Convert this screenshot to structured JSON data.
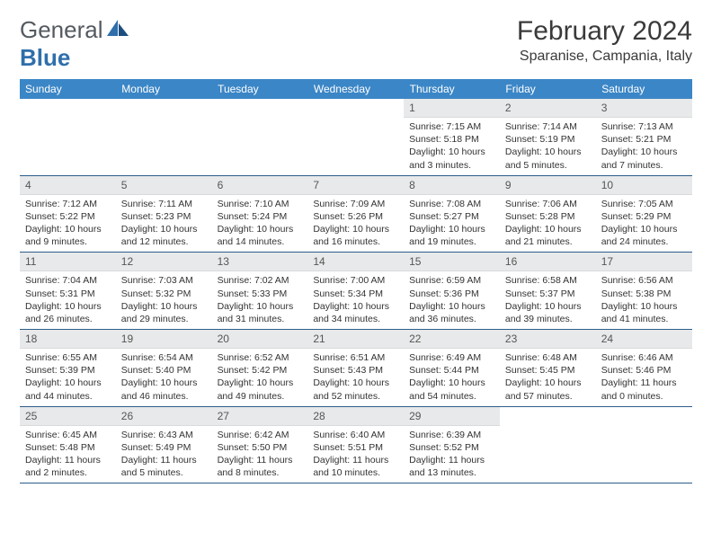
{
  "brand": {
    "general": "General",
    "blue": "Blue"
  },
  "title": "February 2024",
  "location": "Sparanise, Campania, Italy",
  "colors": {
    "header_bg": "#3b86c6",
    "header_text": "#ffffff",
    "daynum_bg": "#e8e9ea",
    "rule": "#2c5d8a",
    "logo_blue": "#2f6fab",
    "logo_gray": "#555a60"
  },
  "weekdays": [
    "Sunday",
    "Monday",
    "Tuesday",
    "Wednesday",
    "Thursday",
    "Friday",
    "Saturday"
  ],
  "weeks": [
    [
      null,
      null,
      null,
      null,
      {
        "n": "1",
        "sr": "Sunrise: 7:15 AM",
        "ss": "Sunset: 5:18 PM",
        "dl": "Daylight: 10 hours and 3 minutes."
      },
      {
        "n": "2",
        "sr": "Sunrise: 7:14 AM",
        "ss": "Sunset: 5:19 PM",
        "dl": "Daylight: 10 hours and 5 minutes."
      },
      {
        "n": "3",
        "sr": "Sunrise: 7:13 AM",
        "ss": "Sunset: 5:21 PM",
        "dl": "Daylight: 10 hours and 7 minutes."
      }
    ],
    [
      {
        "n": "4",
        "sr": "Sunrise: 7:12 AM",
        "ss": "Sunset: 5:22 PM",
        "dl": "Daylight: 10 hours and 9 minutes."
      },
      {
        "n": "5",
        "sr": "Sunrise: 7:11 AM",
        "ss": "Sunset: 5:23 PM",
        "dl": "Daylight: 10 hours and 12 minutes."
      },
      {
        "n": "6",
        "sr": "Sunrise: 7:10 AM",
        "ss": "Sunset: 5:24 PM",
        "dl": "Daylight: 10 hours and 14 minutes."
      },
      {
        "n": "7",
        "sr": "Sunrise: 7:09 AM",
        "ss": "Sunset: 5:26 PM",
        "dl": "Daylight: 10 hours and 16 minutes."
      },
      {
        "n": "8",
        "sr": "Sunrise: 7:08 AM",
        "ss": "Sunset: 5:27 PM",
        "dl": "Daylight: 10 hours and 19 minutes."
      },
      {
        "n": "9",
        "sr": "Sunrise: 7:06 AM",
        "ss": "Sunset: 5:28 PM",
        "dl": "Daylight: 10 hours and 21 minutes."
      },
      {
        "n": "10",
        "sr": "Sunrise: 7:05 AM",
        "ss": "Sunset: 5:29 PM",
        "dl": "Daylight: 10 hours and 24 minutes."
      }
    ],
    [
      {
        "n": "11",
        "sr": "Sunrise: 7:04 AM",
        "ss": "Sunset: 5:31 PM",
        "dl": "Daylight: 10 hours and 26 minutes."
      },
      {
        "n": "12",
        "sr": "Sunrise: 7:03 AM",
        "ss": "Sunset: 5:32 PM",
        "dl": "Daylight: 10 hours and 29 minutes."
      },
      {
        "n": "13",
        "sr": "Sunrise: 7:02 AM",
        "ss": "Sunset: 5:33 PM",
        "dl": "Daylight: 10 hours and 31 minutes."
      },
      {
        "n": "14",
        "sr": "Sunrise: 7:00 AM",
        "ss": "Sunset: 5:34 PM",
        "dl": "Daylight: 10 hours and 34 minutes."
      },
      {
        "n": "15",
        "sr": "Sunrise: 6:59 AM",
        "ss": "Sunset: 5:36 PM",
        "dl": "Daylight: 10 hours and 36 minutes."
      },
      {
        "n": "16",
        "sr": "Sunrise: 6:58 AM",
        "ss": "Sunset: 5:37 PM",
        "dl": "Daylight: 10 hours and 39 minutes."
      },
      {
        "n": "17",
        "sr": "Sunrise: 6:56 AM",
        "ss": "Sunset: 5:38 PM",
        "dl": "Daylight: 10 hours and 41 minutes."
      }
    ],
    [
      {
        "n": "18",
        "sr": "Sunrise: 6:55 AM",
        "ss": "Sunset: 5:39 PM",
        "dl": "Daylight: 10 hours and 44 minutes."
      },
      {
        "n": "19",
        "sr": "Sunrise: 6:54 AM",
        "ss": "Sunset: 5:40 PM",
        "dl": "Daylight: 10 hours and 46 minutes."
      },
      {
        "n": "20",
        "sr": "Sunrise: 6:52 AM",
        "ss": "Sunset: 5:42 PM",
        "dl": "Daylight: 10 hours and 49 minutes."
      },
      {
        "n": "21",
        "sr": "Sunrise: 6:51 AM",
        "ss": "Sunset: 5:43 PM",
        "dl": "Daylight: 10 hours and 52 minutes."
      },
      {
        "n": "22",
        "sr": "Sunrise: 6:49 AM",
        "ss": "Sunset: 5:44 PM",
        "dl": "Daylight: 10 hours and 54 minutes."
      },
      {
        "n": "23",
        "sr": "Sunrise: 6:48 AM",
        "ss": "Sunset: 5:45 PM",
        "dl": "Daylight: 10 hours and 57 minutes."
      },
      {
        "n": "24",
        "sr": "Sunrise: 6:46 AM",
        "ss": "Sunset: 5:46 PM",
        "dl": "Daylight: 11 hours and 0 minutes."
      }
    ],
    [
      {
        "n": "25",
        "sr": "Sunrise: 6:45 AM",
        "ss": "Sunset: 5:48 PM",
        "dl": "Daylight: 11 hours and 2 minutes."
      },
      {
        "n": "26",
        "sr": "Sunrise: 6:43 AM",
        "ss": "Sunset: 5:49 PM",
        "dl": "Daylight: 11 hours and 5 minutes."
      },
      {
        "n": "27",
        "sr": "Sunrise: 6:42 AM",
        "ss": "Sunset: 5:50 PM",
        "dl": "Daylight: 11 hours and 8 minutes."
      },
      {
        "n": "28",
        "sr": "Sunrise: 6:40 AM",
        "ss": "Sunset: 5:51 PM",
        "dl": "Daylight: 11 hours and 10 minutes."
      },
      {
        "n": "29",
        "sr": "Sunrise: 6:39 AM",
        "ss": "Sunset: 5:52 PM",
        "dl": "Daylight: 11 hours and 13 minutes."
      },
      null,
      null
    ]
  ]
}
